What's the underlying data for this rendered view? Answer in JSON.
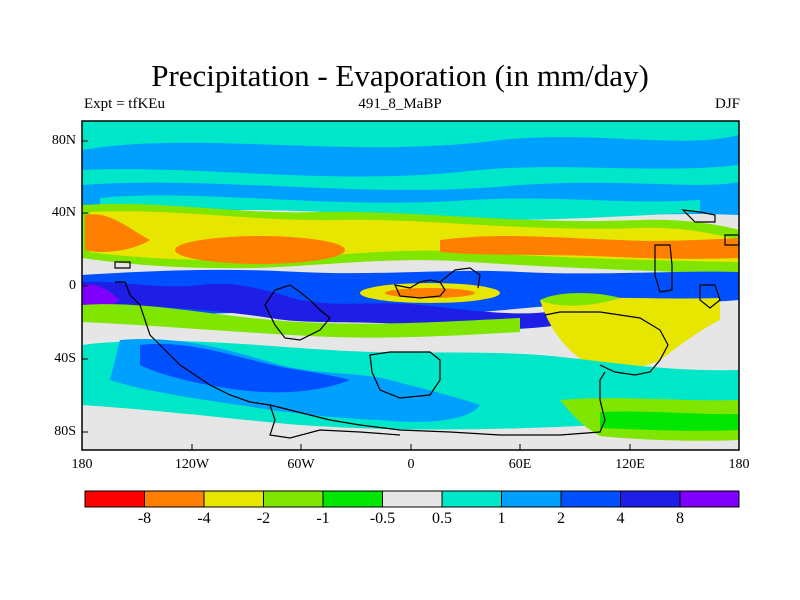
{
  "title": "Precipitation - Evaporation (in mm/day)",
  "left_string": "Expt = tfKEu",
  "center_string": "491_8_MaBP",
  "right_string": "DJF",
  "lat_labels": [
    "80N",
    "40N",
    "0",
    "40S",
    "80S"
  ],
  "lon_labels": [
    "180",
    "120W",
    "60W",
    "0",
    "60E",
    "120E",
    "180"
  ],
  "colorbar": {
    "labels": [
      "-8",
      "-4",
      "-2",
      "-1",
      "-0.5",
      "0.5",
      "1",
      "2",
      "4",
      "8"
    ],
    "colors": [
      "#ff0000",
      "#ff8000",
      "#e6e600",
      "#80e600",
      "#00e600",
      "#e6e6e6",
      "#00e6c8",
      "#00a0ff",
      "#0050ff",
      "#1e1ee6",
      "#8000ff"
    ]
  },
  "map_colors": {
    "gray": "#e6e6e6",
    "cyan": "#00e6c8",
    "lightblue": "#00a0ff",
    "blue": "#0050ff",
    "darkblue": "#1e1ee6",
    "purple": "#8000ff",
    "green": "#00e600",
    "lime": "#80e600",
    "yellow": "#e6e600",
    "orange": "#ff8000",
    "red": "#ff0000"
  }
}
